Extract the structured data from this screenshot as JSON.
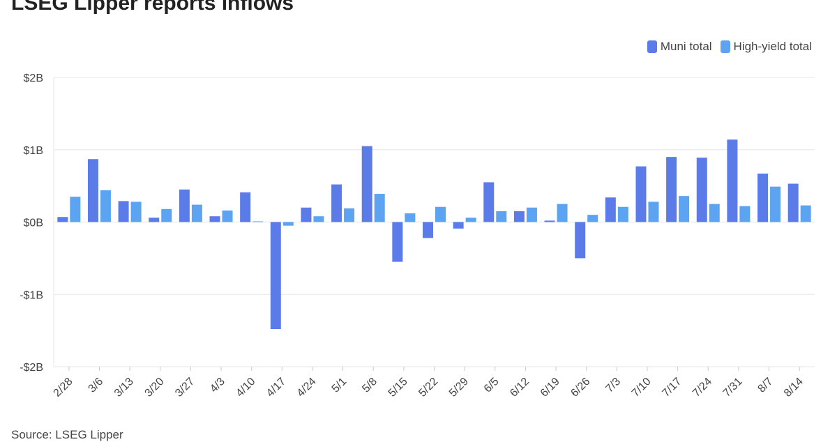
{
  "chart_data": {
    "type": "bar",
    "title": "LSEG Lipper reports inflows",
    "source": "Source: LSEG Lipper",
    "xlabel": "",
    "ylabel": "",
    "ylim": [
      -2,
      2
    ],
    "yunit": "billions USD",
    "yticks": [
      2,
      1,
      0,
      -1,
      -2
    ],
    "ytick_labels": [
      "$2B",
      "$1B",
      "$0B",
      "-$1B",
      "-$2B"
    ],
    "grid": true,
    "legend_position": "top-right",
    "categories": [
      "2/28",
      "3/6",
      "3/13",
      "3/20",
      "3/27",
      "4/3",
      "4/10",
      "4/17",
      "4/24",
      "5/1",
      "5/8",
      "5/15",
      "5/22",
      "5/29",
      "6/5",
      "6/12",
      "6/19",
      "6/26",
      "7/3",
      "7/10",
      "7/17",
      "7/24",
      "7/31",
      "8/7",
      "8/14"
    ],
    "series": [
      {
        "name": "Muni total",
        "color": "#5b7be9",
        "values": [
          0.07,
          0.87,
          0.29,
          0.06,
          0.45,
          0.08,
          0.41,
          -1.48,
          0.2,
          0.52,
          1.05,
          -0.55,
          -0.22,
          -0.09,
          0.55,
          0.15,
          0.02,
          -0.5,
          0.34,
          0.77,
          0.9,
          0.89,
          1.14,
          0.67,
          0.53
        ]
      },
      {
        "name": "High-yield total",
        "color": "#5ca4f1",
        "values": [
          0.35,
          0.44,
          0.28,
          0.18,
          0.24,
          0.16,
          0.01,
          -0.05,
          0.08,
          0.19,
          0.39,
          0.12,
          0.21,
          0.06,
          0.15,
          0.2,
          0.25,
          0.1,
          0.21,
          0.28,
          0.36,
          0.25,
          0.22,
          0.49,
          0.23
        ]
      }
    ]
  }
}
